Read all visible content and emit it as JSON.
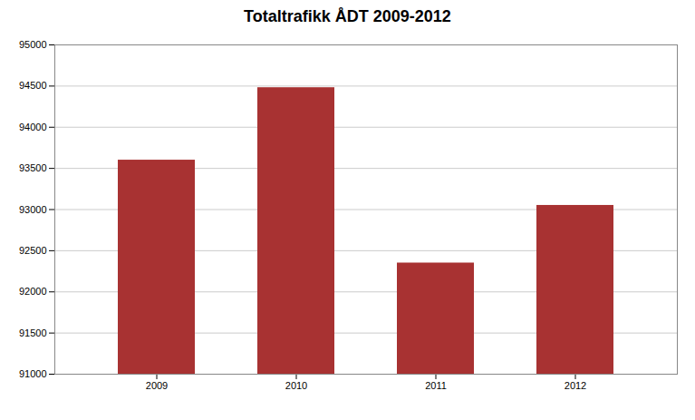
{
  "chart_data": {
    "type": "bar",
    "title": "Totaltrafikk ÅDT 2009-2012",
    "categories": [
      "2009",
      "2010",
      "2011",
      "2012"
    ],
    "values": [
      93600,
      94480,
      92350,
      93050
    ],
    "color": "#A83232",
    "ylim": [
      91000,
      95000
    ],
    "yticks": [
      91000,
      91500,
      92000,
      92500,
      93000,
      93500,
      94000,
      94500,
      95000
    ],
    "grid": true
  }
}
